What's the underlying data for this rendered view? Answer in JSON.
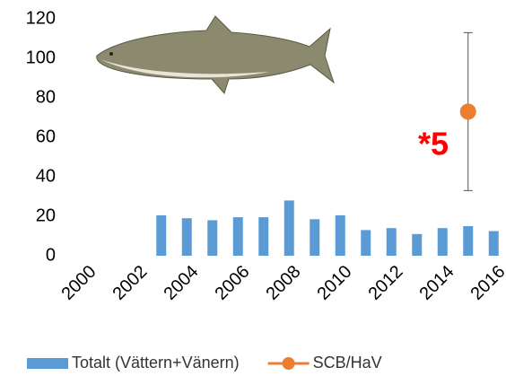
{
  "chart_data": {
    "type": "bar",
    "categories": [
      "2000",
      null,
      "2002",
      null,
      "2004",
      null,
      "2006",
      null,
      "2008",
      null,
      "2010",
      null,
      "2012",
      null,
      "2014",
      null,
      "2016"
    ],
    "series": [
      {
        "name": "Totalt (Vättern+Vänern)",
        "type": "bar",
        "color": "#5b9bd5",
        "values": [
          null,
          null,
          null,
          20.5,
          19,
          18,
          19.5,
          19.5,
          28,
          18.5,
          20.5,
          13,
          14,
          11,
          14,
          15,
          12.5
        ]
      },
      {
        "name": "SCB/HaV",
        "type": "scatter",
        "color": "#ed7d31",
        "values": [
          null,
          null,
          null,
          null,
          null,
          null,
          null,
          null,
          null,
          null,
          null,
          null,
          null,
          null,
          null,
          73,
          null
        ],
        "errors": [
          null,
          null,
          null,
          null,
          null,
          null,
          null,
          null,
          null,
          null,
          null,
          null,
          null,
          null,
          null,
          40,
          null
        ]
      }
    ],
    "annotation": "*5",
    "ylim": [
      0,
      120
    ],
    "yticks": [
      0,
      20,
      40,
      60,
      80,
      100,
      120
    ],
    "grid": false,
    "legend": "bottom"
  }
}
